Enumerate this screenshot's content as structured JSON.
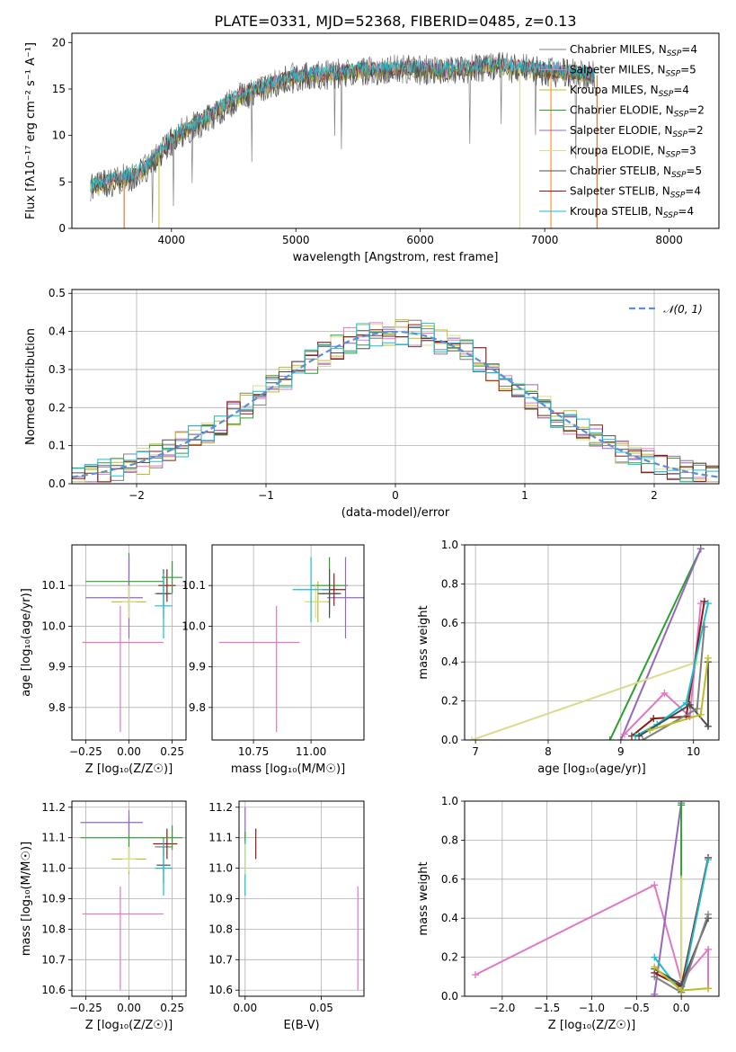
{
  "figure": {
    "title": "PLATE=0331, MJD=52368, FIBERID=0485, z=0.13"
  },
  "colors": {
    "Chabrier MILES": "#7f7f7f",
    "Salpeter MILES": "#e377c2",
    "Kroupa MILES": "#bcbd22",
    "Chabrier ELODIE": "#2ca02c",
    "Salpeter ELODIE": "#9467bd",
    "Kroupa ELODIE": "#dbdb8d",
    "Chabrier STELIB": "#4d4d4d",
    "Salpeter STELIB": "#8c1c13",
    "Kroupa STELIB": "#17becf",
    "normal": "#5b8fd8"
  },
  "chart_data": [
    {
      "id": "spectrum",
      "type": "line",
      "xlabel": "wavelength [Angstrom, rest frame]",
      "ylabel": "Flux [fλ10⁻¹⁷ erg cm⁻² s⁻¹ A⁻¹]",
      "xlim": [
        3200,
        8400
      ],
      "ylim": [
        0,
        21
      ],
      "xticks": [
        4000,
        5000,
        6000,
        7000,
        8000
      ],
      "yticks": [
        0,
        5,
        10,
        15,
        20
      ],
      "legend_position": "top-right",
      "legend": [
        "Chabrier MILES, N_SSP=4",
        "Salpeter MILES, N_SSP=5",
        "Kroupa MILES, N_SSP=4",
        "Chabrier ELODIE, N_SSP=2",
        "Salpeter ELODIE, N_SSP=2",
        "Kroupa ELODIE, N_SSP=3",
        "Chabrier STELIB, N_SSP=5",
        "Salpeter STELIB, N_SSP=4",
        "Kroupa STELIB, N_SSP=4"
      ],
      "continuum": {
        "x": [
          3350,
          3500,
          3650,
          3800,
          3900,
          4000,
          4100,
          4200,
          4300,
          4400,
          4500,
          4600,
          4700,
          4800,
          4900,
          5000,
          5200,
          5400,
          5600,
          5800,
          6000,
          6200,
          6400,
          6600,
          6800,
          7000,
          7200,
          7400
        ],
        "y": [
          4.5,
          5.0,
          5.5,
          6.5,
          8.0,
          9.5,
          10.5,
          11.2,
          12.0,
          13.0,
          13.8,
          14.5,
          15.0,
          15.5,
          16.0,
          16.3,
          16.5,
          16.8,
          17.0,
          17.2,
          17.2,
          17.0,
          17.2,
          17.5,
          17.3,
          17.0,
          16.8,
          16.5
        ]
      }
    },
    {
      "id": "residuals",
      "type": "histogram",
      "xlabel": "(data-model)/error",
      "ylabel": "Normed distribution",
      "xlim": [
        -2.5,
        2.5
      ],
      "ylim": [
        0,
        0.51
      ],
      "xticks": [
        -2,
        -1,
        0,
        1,
        2
      ],
      "yticks": [
        0.0,
        0.1,
        0.2,
        0.3,
        0.4,
        0.5
      ],
      "grid": true,
      "legend_position": "top-right",
      "legend": [
        "𝒩(0, 1)"
      ],
      "bin_width": 0.1
    },
    {
      "id": "age-vs-Z",
      "type": "scatter",
      "xlabel": "Z [log₁₀(Z/Z☉)]",
      "ylabel": "age  [log₁₀(age/yr)]",
      "xlim": [
        -0.33,
        0.33
      ],
      "ylim": [
        9.72,
        10.2
      ],
      "xticks": [
        -0.25,
        0.0,
        0.25
      ],
      "yticks": [
        9.8,
        9.9,
        10.0,
        10.1
      ],
      "grid": true,
      "points": [
        {
          "series": "Chabrier MILES",
          "x": 0.2,
          "y": 10.08,
          "xerr": [
            0.05,
            0.05
          ],
          "yerr": [
            0.03,
            0.03
          ]
        },
        {
          "series": "Salpeter MILES",
          "x": -0.05,
          "y": 9.96,
          "xerr": [
            0.22,
            0.25
          ],
          "yerr": [
            0.22,
            0.09
          ]
        },
        {
          "series": "Kroupa MILES",
          "x": 0.0,
          "y": 10.06,
          "xerr": [
            0.1,
            0.1
          ],
          "yerr": [
            0.05,
            0.05
          ]
        },
        {
          "series": "Chabrier ELODIE",
          "x": 0.0,
          "y": 10.11,
          "xerr": [
            0.25,
            0.2
          ],
          "yerr": [
            0.07,
            0.07
          ]
        },
        {
          "series": "Salpeter ELODIE",
          "x": 0.0,
          "y": 10.07,
          "xerr": [
            0.25,
            0.08
          ],
          "yerr": [
            0.1,
            0.1
          ]
        },
        {
          "series": "Kroupa ELODIE",
          "x": 0.0,
          "y": 10.06,
          "xerr": [
            0.04,
            0.04
          ],
          "yerr": [
            0.04,
            0.04
          ]
        },
        {
          "series": "Chabrier STELIB",
          "x": 0.2,
          "y": 10.08,
          "xerr": [
            0.04,
            0.04
          ],
          "yerr": [
            0.06,
            0.06
          ]
        },
        {
          "series": "Salpeter STELIB",
          "x": 0.22,
          "y": 10.1,
          "xerr": [
            0.05,
            0.05
          ],
          "yerr": [
            0.04,
            0.04
          ]
        },
        {
          "series": "Kroupa STELIB",
          "x": 0.2,
          "y": 10.05,
          "xerr": [
            0.05,
            0.05
          ],
          "yerr": [
            0.08,
            0.08
          ]
        },
        {
          "series": "Chabrier ELODIE",
          "x": 0.25,
          "y": 10.12,
          "xerr": [
            0.06,
            0.06
          ],
          "yerr": [
            0.04,
            0.04
          ]
        }
      ]
    },
    {
      "id": "age-vs-mass",
      "type": "scatter",
      "xlabel": "mass [log₁₀(M/M☉)]",
      "ylabel": "",
      "xlim": [
        10.57,
        11.23
      ],
      "ylim": [
        9.72,
        10.2
      ],
      "xticks": [
        10.75,
        11.0
      ],
      "yticks": [
        9.8,
        9.9,
        10.0,
        10.1
      ],
      "grid": true,
      "points": [
        {
          "series": "Chabrier MILES",
          "x": 11.08,
          "y": 10.08,
          "xerr": [
            0.04,
            0.04
          ],
          "yerr": [
            0.03,
            0.03
          ]
        },
        {
          "series": "Salpeter MILES",
          "x": 10.85,
          "y": 9.96,
          "xerr": [
            0.25,
            0.1
          ],
          "yerr": [
            0.22,
            0.09
          ]
        },
        {
          "series": "Kroupa MILES",
          "x": 11.03,
          "y": 10.06,
          "xerr": [
            0.05,
            0.05
          ],
          "yerr": [
            0.05,
            0.05
          ]
        },
        {
          "series": "Chabrier ELODIE",
          "x": 11.08,
          "y": 10.1,
          "xerr": [
            0.08,
            0.08
          ],
          "yerr": [
            0.07,
            0.07
          ]
        },
        {
          "series": "Salpeter ELODIE",
          "x": 11.15,
          "y": 10.07,
          "xerr": [
            0.08,
            0.08
          ],
          "yerr": [
            0.1,
            0.1
          ]
        },
        {
          "series": "Kroupa ELODIE",
          "x": 11.02,
          "y": 10.06,
          "xerr": [
            0.05,
            0.05
          ],
          "yerr": [
            0.04,
            0.04
          ]
        },
        {
          "series": "Chabrier STELIB",
          "x": 11.08,
          "y": 10.08,
          "xerr": [
            0.05,
            0.05
          ],
          "yerr": [
            0.06,
            0.06
          ]
        },
        {
          "series": "Salpeter STELIB",
          "x": 11.1,
          "y": 10.09,
          "xerr": [
            0.05,
            0.05
          ],
          "yerr": [
            0.04,
            0.04
          ]
        },
        {
          "series": "Kroupa STELIB",
          "x": 11.0,
          "y": 10.09,
          "xerr": [
            0.08,
            0.08
          ],
          "yerr": [
            0.08,
            0.08
          ]
        }
      ]
    },
    {
      "id": "weight-vs-age",
      "type": "line",
      "xlabel": "age  [log₁₀(age/yr)]",
      "ylabel": "mass weight",
      "xlim": [
        6.85,
        10.35
      ],
      "ylim": [
        0,
        1.0
      ],
      "xticks": [
        7,
        8,
        9,
        10
      ],
      "yticks": [
        0.0,
        0.2,
        0.4,
        0.6,
        0.8,
        1.0
      ],
      "grid": true,
      "series": [
        {
          "name": "Chabrier ELODIE",
          "x": [
            8.85,
            10.1
          ],
          "y": [
            0.0,
            0.98
          ]
        },
        {
          "name": "Salpeter ELODIE",
          "x": [
            9.0,
            10.1
          ],
          "y": [
            0.0,
            0.98
          ]
        },
        {
          "name": "Kroupa ELODIE",
          "x": [
            6.95,
            10.05
          ],
          "y": [
            0.0,
            0.4
          ]
        },
        {
          "name": "Salpeter MILES",
          "x": [
            9.05,
            9.6,
            9.95,
            10.1
          ],
          "y": [
            0.03,
            0.24,
            0.12,
            0.7
          ]
        },
        {
          "name": "Salpeter STELIB",
          "x": [
            9.15,
            9.45,
            9.9,
            10.15
          ],
          "y": [
            0.02,
            0.11,
            0.12,
            0.71
          ]
        },
        {
          "name": "Kroupa STELIB",
          "x": [
            9.2,
            9.5,
            9.9,
            10.2
          ],
          "y": [
            0.02,
            0.08,
            0.19,
            0.7
          ]
        },
        {
          "name": "Chabrier STELIB",
          "x": [
            9.25,
            9.95,
            10.2,
            10.2
          ],
          "y": [
            0.02,
            0.18,
            0.07,
            0.4
          ]
        },
        {
          "name": "Chabrier MILES",
          "x": [
            9.3,
            10.05,
            10.15
          ],
          "y": [
            0.0,
            0.16,
            0.58
          ]
        },
        {
          "name": "Kroupa MILES",
          "x": [
            9.4,
            10.1,
            10.2
          ],
          "y": [
            0.05,
            0.13,
            0.42
          ]
        }
      ]
    },
    {
      "id": "mass-vs-Z",
      "type": "scatter",
      "xlabel": "Z [log₁₀(Z/Z☉)]",
      "ylabel": "mass [log₁₀(M/M☉)]",
      "xlim": [
        -0.33,
        0.33
      ],
      "ylim": [
        10.58,
        11.22
      ],
      "xticks": [
        -0.25,
        0.0,
        0.25
      ],
      "yticks": [
        10.6,
        10.7,
        10.8,
        10.9,
        11.0,
        11.1,
        11.2
      ],
      "grid": true,
      "points": [
        {
          "series": "Chabrier MILES",
          "x": 0.2,
          "y": 11.07,
          "xerr": [
            0.05,
            0.05
          ],
          "yerr": [
            0.03,
            0.03
          ]
        },
        {
          "series": "Salpeter MILES",
          "x": -0.05,
          "y": 10.85,
          "xerr": [
            0.22,
            0.25
          ],
          "yerr": [
            0.25,
            0.09
          ]
        },
        {
          "series": "Kroupa MILES",
          "x": 0.0,
          "y": 11.03,
          "xerr": [
            0.1,
            0.1
          ],
          "yerr": [
            0.05,
            0.05
          ]
        },
        {
          "series": "Chabrier ELODIE",
          "x": 0.0,
          "y": 11.1,
          "xerr": [
            0.28,
            0.2
          ],
          "yerr": [
            0.07,
            0.07
          ]
        },
        {
          "series": "Salpeter ELODIE",
          "x": 0.0,
          "y": 11.15,
          "xerr": [
            0.28,
            0.08
          ],
          "yerr": [
            0.04,
            0.04
          ]
        },
        {
          "series": "Kroupa ELODIE",
          "x": 0.0,
          "y": 11.03,
          "xerr": [
            0.04,
            0.04
          ],
          "yerr": [
            0.04,
            0.04
          ]
        },
        {
          "series": "Chabrier STELIB",
          "x": 0.2,
          "y": 11.01,
          "xerr": [
            0.04,
            0.04
          ],
          "yerr": [
            0.06,
            0.06
          ]
        },
        {
          "series": "Salpeter STELIB",
          "x": 0.22,
          "y": 11.08,
          "xerr": [
            0.08,
            0.06
          ],
          "yerr": [
            0.05,
            0.05
          ]
        },
        {
          "series": "Kroupa STELIB",
          "x": 0.2,
          "y": 11.0,
          "xerr": [
            0.05,
            0.05
          ],
          "yerr": [
            0.09,
            0.09
          ]
        },
        {
          "series": "Chabrier ELODIE",
          "x": 0.25,
          "y": 11.1,
          "xerr": [
            0.06,
            0.06
          ],
          "yerr": [
            0.04,
            0.04
          ]
        }
      ]
    },
    {
      "id": "mass-vs-ebv",
      "type": "scatter",
      "xlabel": "E(B-V)",
      "ylabel": "",
      "xlim": [
        -0.004,
        0.078
      ],
      "ylim": [
        10.58,
        11.22
      ],
      "xticks": [
        0.0,
        0.05
      ],
      "yticks": [
        10.6,
        10.7,
        10.8,
        10.9,
        11.0,
        11.1,
        11.2
      ],
      "grid": true,
      "points": [
        {
          "series": "Salpeter ELODIE",
          "x": 0.0,
          "y": 11.15,
          "xerr": [
            0.0,
            0.0
          ],
          "yerr": [
            0.05,
            0.05
          ]
        },
        {
          "series": "Chabrier ELODIE",
          "x": 0.0,
          "y": 11.08,
          "xerr": [
            0.0,
            0.0
          ],
          "yerr": [
            0.04,
            0.04
          ]
        },
        {
          "series": "Kroupa STELIB",
          "x": 0.0,
          "y": 11.0,
          "xerr": [
            0.0,
            0.0
          ],
          "yerr": [
            0.09,
            0.09
          ]
        },
        {
          "series": "Kroupa ELODIE",
          "x": 0.0,
          "y": 11.03,
          "xerr": [
            0.0,
            0.0
          ],
          "yerr": [
            0.05,
            0.05
          ]
        },
        {
          "series": "Salpeter STELIB",
          "x": 0.007,
          "y": 11.08,
          "xerr": [
            0.0,
            0.0
          ],
          "yerr": [
            0.05,
            0.05
          ]
        },
        {
          "series": "Salpeter MILES",
          "x": 0.074,
          "y": 10.77,
          "xerr": [
            0.0,
            0.0
          ],
          "yerr": [
            0.17,
            0.17
          ]
        }
      ]
    },
    {
      "id": "weight-vs-Z",
      "type": "line",
      "xlabel": "Z [log₁₀(Z/Z☉)]",
      "ylabel": "mass weight",
      "xlim": [
        -2.42,
        0.42
      ],
      "ylim": [
        0,
        1.0
      ],
      "xticks": [
        -2.0,
        -1.5,
        -1.0,
        -0.5,
        0.0
      ],
      "yticks": [
        0.0,
        0.2,
        0.4,
        0.6,
        0.8,
        1.0
      ],
      "grid": true,
      "series": [
        {
          "name": "Salpeter MILES",
          "x": [
            -2.3,
            -0.3,
            0.0,
            0.3,
            0.3
          ],
          "y": [
            0.11,
            0.57,
            0.08,
            0.24,
            0.04
          ]
        },
        {
          "name": "Salpeter ELODIE",
          "x": [
            -0.3,
            0.0
          ],
          "y": [
            0.01,
            0.99
          ]
        },
        {
          "name": "Chabrier ELODIE",
          "x": [
            0.0,
            0.0
          ],
          "y": [
            0.02,
            0.98
          ]
        },
        {
          "name": "Kroupa ELODIE",
          "x": [
            0.0,
            0.0
          ],
          "y": [
            0.0,
            0.6
          ]
        },
        {
          "name": "Salpeter STELIB",
          "x": [
            -0.3,
            0.0,
            0.3
          ],
          "y": [
            0.12,
            0.05,
            0.71
          ]
        },
        {
          "name": "Kroupa STELIB",
          "x": [
            -0.3,
            0.0,
            0.3
          ],
          "y": [
            0.2,
            0.02,
            0.7
          ]
        },
        {
          "name": "Chabrier STELIB",
          "x": [
            -0.3,
            0.0,
            0.3
          ],
          "y": [
            0.14,
            0.06,
            0.4
          ]
        },
        {
          "name": "Chabrier MILES",
          "x": [
            -0.3,
            0.0,
            0.3
          ],
          "y": [
            0.1,
            0.02,
            0.42
          ]
        },
        {
          "name": "Kroupa MILES",
          "x": [
            -0.3,
            0.0,
            0.3
          ],
          "y": [
            0.15,
            0.03,
            0.04
          ]
        }
      ]
    }
  ]
}
